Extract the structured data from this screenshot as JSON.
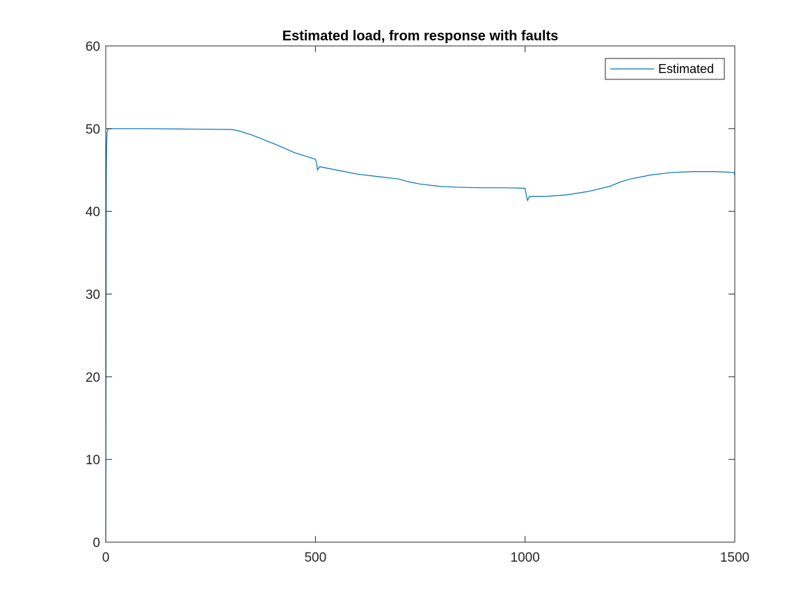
{
  "chart_data": {
    "type": "line",
    "title": "Estimated load, from response with faults",
    "xlabel": "",
    "ylabel": "",
    "xlim": [
      0,
      1500
    ],
    "ylim": [
      0,
      60
    ],
    "xticks": [
      0,
      500,
      1000,
      1500
    ],
    "xtick_labels": [
      "0",
      "500",
      "1000",
      "1500"
    ],
    "yticks": [
      0,
      10,
      20,
      30,
      40,
      50,
      60
    ],
    "ytick_labels": [
      "0",
      "10",
      "20",
      "30",
      "40",
      "50",
      "60"
    ],
    "grid": false,
    "legend_position": "top-right",
    "series": [
      {
        "name": "Estimated",
        "color": "#0072BD",
        "x": [
          0,
          0.5,
          1,
          1.5,
          2,
          3,
          5,
          10,
          50,
          100,
          200,
          300,
          320,
          350,
          400,
          450,
          500,
          503,
          505,
          510,
          550,
          600,
          650,
          700,
          720,
          750,
          800,
          850,
          900,
          950,
          1000,
          1003,
          1006,
          1010,
          1050,
          1100,
          1150,
          1200,
          1230,
          1250,
          1300,
          1350,
          1400,
          1450,
          1480,
          1499,
          1500
        ],
        "y": [
          0,
          22,
          40,
          46,
          48,
          49.5,
          49.9,
          50,
          50,
          50,
          49.95,
          49.9,
          49.7,
          49.2,
          48.2,
          47.1,
          46.3,
          45.8,
          45.0,
          45.4,
          45.0,
          44.5,
          44.2,
          43.9,
          43.6,
          43.3,
          43.0,
          42.9,
          42.85,
          42.85,
          42.8,
          41.9,
          41.3,
          41.8,
          41.8,
          42.0,
          42.4,
          43.0,
          43.6,
          43.9,
          44.4,
          44.7,
          44.8,
          44.8,
          44.75,
          44.7,
          44.3
        ]
      }
    ]
  }
}
